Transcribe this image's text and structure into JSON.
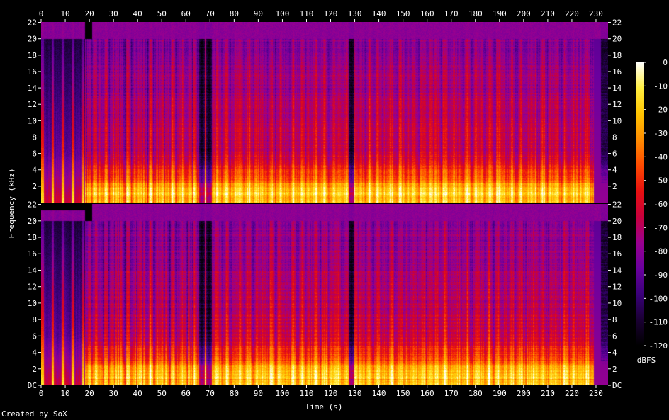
{
  "chart_data": {
    "type": "heatmap",
    "title": "",
    "xlabel": "Time (s)",
    "ylabel": "Frequency (kHz)",
    "xlim": [
      0,
      235
    ],
    "ylim": [
      0,
      22.05
    ],
    "x_ticks": [
      0,
      10,
      20,
      30,
      40,
      50,
      60,
      70,
      80,
      90,
      100,
      110,
      120,
      130,
      140,
      150,
      160,
      170,
      180,
      190,
      200,
      210,
      220,
      230
    ],
    "y_ticks": [
      {
        "value": 0,
        "label": "DC"
      },
      {
        "value": 2,
        "label": "2"
      },
      {
        "value": 4,
        "label": "4"
      },
      {
        "value": 6,
        "label": "6"
      },
      {
        "value": 8,
        "label": "8"
      },
      {
        "value": 10,
        "label": "10"
      },
      {
        "value": 12,
        "label": "12"
      },
      {
        "value": 14,
        "label": "14"
      },
      {
        "value": 16,
        "label": "16"
      },
      {
        "value": 18,
        "label": "18"
      },
      {
        "value": 20,
        "label": "20"
      },
      {
        "value": 22,
        "label": "22"
      }
    ],
    "channels": [
      "left",
      "right"
    ],
    "colorbar": {
      "label": "dBFS",
      "range": [
        -120,
        0
      ],
      "ticks": [
        0,
        -10,
        -20,
        -30,
        -40,
        -50,
        -60,
        -70,
        -80,
        -90,
        -100,
        -110,
        -120
      ]
    },
    "colormap": [
      "#000000",
      "#1a0033",
      "#3a007a",
      "#6a009e",
      "#9a0090",
      "#c8003c",
      "#e8100f",
      "#ff4a00",
      "#ff8c00",
      "#ffc400",
      "#ffee40",
      "#ffffff"
    ],
    "cutoff_khz": 20,
    "dropouts_s": [
      66.5,
      69.5,
      128.5,
      233
    ]
  },
  "footer": {
    "credit": "Created by SoX"
  }
}
